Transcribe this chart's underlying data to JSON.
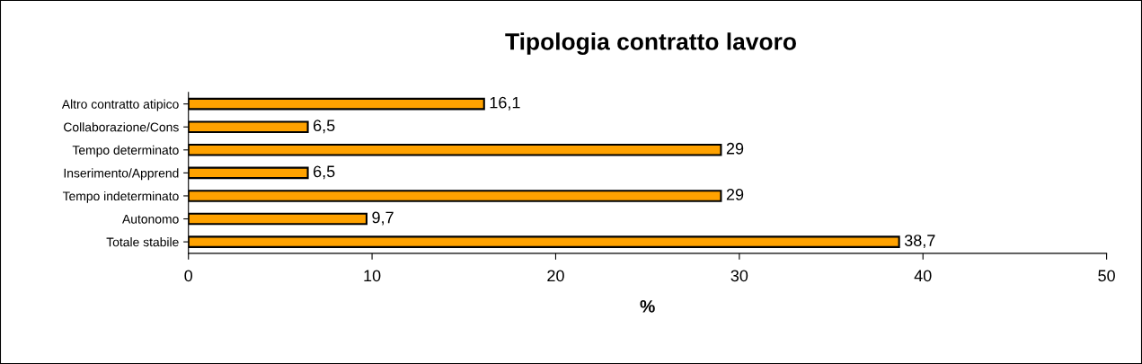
{
  "chart_data": {
    "type": "bar",
    "orientation": "horizontal",
    "title": "Tipologia contratto lavoro",
    "xlabel": "%",
    "categories": [
      "Altro contratto atipico",
      "Collaborazione/Cons",
      "Tempo determinato",
      "Inserimento/Apprend",
      "Tempo indeterminato",
      "Autonomo",
      "Totale stabile"
    ],
    "values": [
      16.1,
      6.5,
      29,
      6.5,
      29,
      9.7,
      38.7
    ],
    "value_labels": [
      "16,1",
      "6,5",
      "29",
      "6,5",
      "29",
      "9,7",
      "38,7"
    ],
    "color": "#ffa200",
    "xlim": [
      0,
      50
    ],
    "xticks": [
      0,
      10,
      20,
      30,
      40,
      50
    ],
    "grid": false,
    "legend": false
  }
}
